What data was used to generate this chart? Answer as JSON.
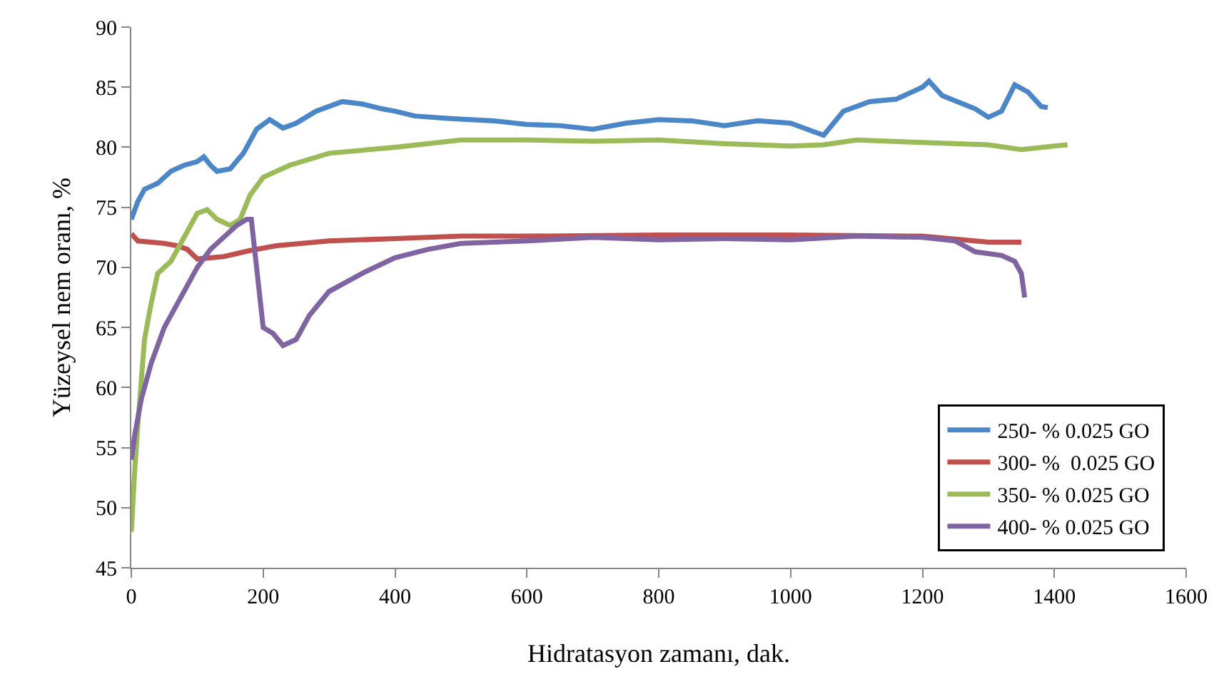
{
  "chart_data": {
    "type": "line",
    "xlabel": "Hidratasyon zamanı, dak.",
    "ylabel": "Yüzeysel nem oranı, %",
    "xlim": [
      0,
      1600
    ],
    "xticks": [
      0,
      200,
      400,
      600,
      800,
      1000,
      1200,
      1400,
      1600
    ],
    "ylim": [
      45,
      90
    ],
    "yticks": [
      45,
      50,
      55,
      60,
      65,
      70,
      75,
      80,
      85,
      90
    ],
    "grid": false,
    "legend": "bottom right",
    "marker": "none",
    "line_style": "solid",
    "series": [
      {
        "name": "250- % 0.025 GO",
        "color": "#4a86c8",
        "x": [
          0,
          10,
          20,
          40,
          60,
          80,
          100,
          110,
          120,
          130,
          150,
          170,
          190,
          210,
          230,
          250,
          280,
          320,
          350,
          380,
          400,
          430,
          480,
          550,
          600,
          650,
          700,
          750,
          800,
          850,
          900,
          950,
          1000,
          1040,
          1050,
          1080,
          1120,
          1160,
          1200,
          1210,
          1230,
          1280,
          1300,
          1320,
          1340,
          1360,
          1380,
          1390
        ],
        "values": [
          74,
          75.5,
          76.5,
          77,
          78,
          78.5,
          78.8,
          79.2,
          78.5,
          78,
          78.2,
          79.5,
          81.5,
          82.3,
          81.6,
          82,
          83,
          83.8,
          83.6,
          83.2,
          83,
          82.6,
          82.4,
          82.2,
          81.9,
          81.8,
          81.5,
          82,
          82.3,
          82.2,
          81.8,
          82.2,
          82,
          81.2,
          81,
          83,
          83.8,
          84,
          85,
          85.5,
          84.3,
          83.2,
          82.5,
          83,
          85.2,
          84.6,
          83.4,
          83.3
        ]
      },
      {
        "name": "300- %  0.025 GO",
        "color": "#c0504d",
        "x": [
          0,
          10,
          50,
          70,
          85,
          100,
          140,
          180,
          220,
          300,
          400,
          500,
          600,
          800,
          1000,
          1200,
          1300,
          1350
        ],
        "values": [
          72.8,
          72.2,
          72,
          71.8,
          71.5,
          70.7,
          70.9,
          71.4,
          71.8,
          72.2,
          72.4,
          72.6,
          72.6,
          72.7,
          72.7,
          72.6,
          72.1,
          72.1
        ]
      },
      {
        "name": "350- % 0.025 GO",
        "color": "#9bbb59",
        "x": [
          0,
          5,
          10,
          20,
          30,
          40,
          60,
          80,
          100,
          115,
          130,
          150,
          165,
          180,
          200,
          240,
          300,
          400,
          500,
          600,
          700,
          800,
          900,
          1000,
          1050,
          1100,
          1200,
          1300,
          1350,
          1400,
          1420
        ],
        "values": [
          48,
          53,
          57,
          64,
          67,
          69.5,
          70.5,
          72.5,
          74.5,
          74.8,
          74,
          73.5,
          74,
          76,
          77.5,
          78.5,
          79.5,
          80,
          80.6,
          80.6,
          80.5,
          80.6,
          80.3,
          80.1,
          80.2,
          80.6,
          80.4,
          80.2,
          79.8,
          80.1,
          80.2
        ]
      },
      {
        "name": "400- % 0.025 GO",
        "color": "#8064a2",
        "x": [
          0,
          5,
          15,
          30,
          50,
          80,
          100,
          120,
          140,
          160,
          175,
          182,
          190,
          200,
          215,
          230,
          250,
          270,
          300,
          350,
          400,
          450,
          500,
          600,
          700,
          800,
          900,
          1000,
          1100,
          1200,
          1250,
          1280,
          1320,
          1340,
          1350,
          1355
        ],
        "values": [
          54,
          56,
          59,
          62,
          65,
          68,
          70,
          71.5,
          72.5,
          73.5,
          74,
          74,
          70,
          65,
          64.5,
          63.5,
          64,
          66,
          68,
          69.5,
          70.8,
          71.5,
          72,
          72.2,
          72.5,
          72.3,
          72.4,
          72.3,
          72.6,
          72.5,
          72.2,
          71.3,
          71,
          70.5,
          69.5,
          67.5
        ]
      }
    ]
  }
}
